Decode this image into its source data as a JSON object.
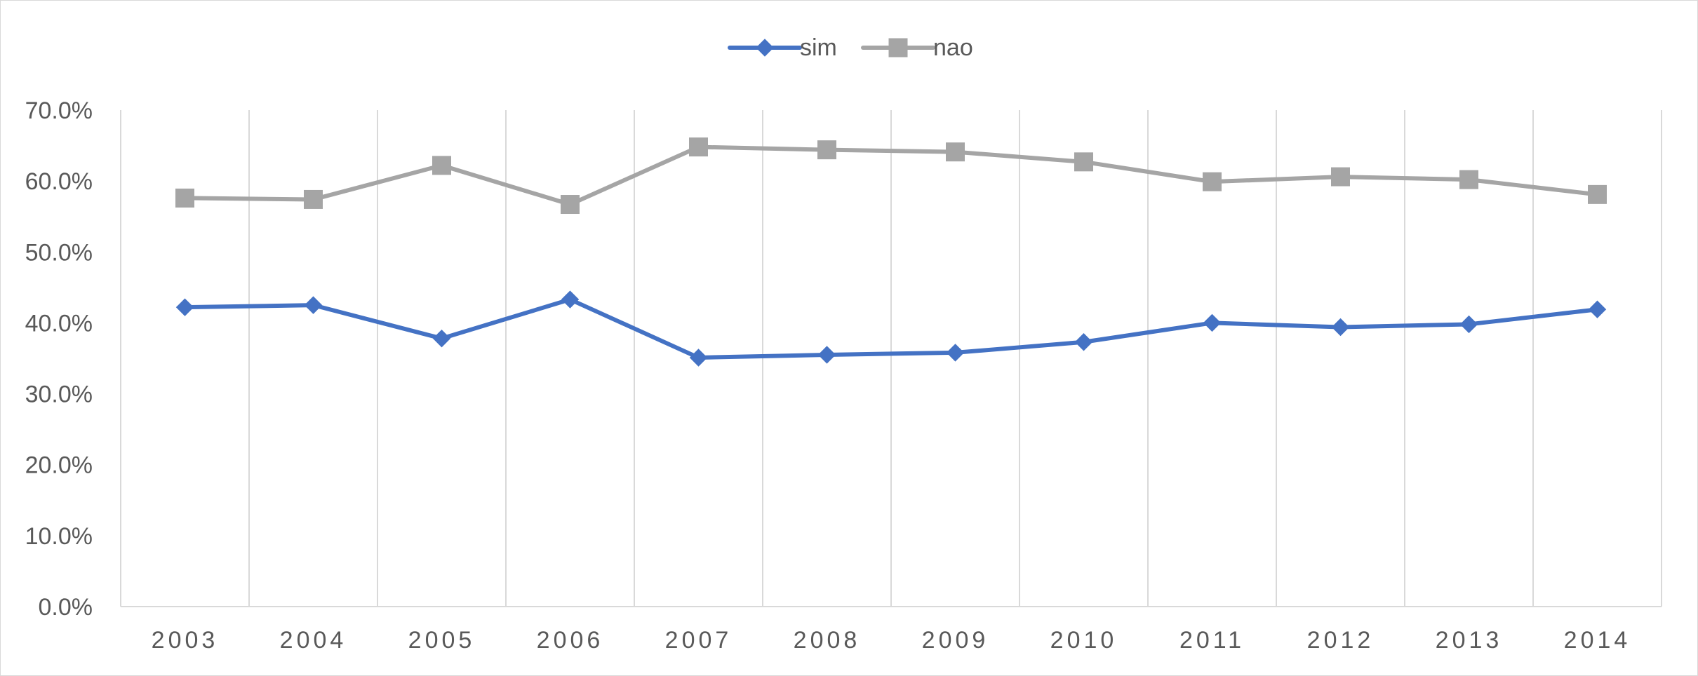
{
  "chart_data": {
    "type": "line",
    "categories": [
      "2003",
      "2004",
      "2005",
      "2006",
      "2007",
      "2008",
      "2009",
      "2010",
      "2011",
      "2012",
      "2013",
      "2014"
    ],
    "series": [
      {
        "name": "sim",
        "color": "#4472C4",
        "marker": "diamond",
        "values": [
          42.2,
          42.5,
          37.8,
          43.3,
          35.1,
          35.5,
          35.8,
          37.3,
          40.0,
          39.4,
          39.8,
          41.9
        ]
      },
      {
        "name": "nao",
        "color": "#A5A5A5",
        "marker": "square",
        "values": [
          57.6,
          57.4,
          62.2,
          56.7,
          64.8,
          64.4,
          64.1,
          62.7,
          59.9,
          60.6,
          60.2,
          58.1
        ]
      }
    ],
    "yticks": [
      "0.0%",
      "10.0%",
      "20.0%",
      "30.0%",
      "40.0%",
      "50.0%",
      "60.0%",
      "70.0%"
    ],
    "ylim": [
      0,
      70
    ],
    "grid": "vertical",
    "legend_position": "top-center",
    "title": "",
    "xlabel": "",
    "ylabel": ""
  }
}
